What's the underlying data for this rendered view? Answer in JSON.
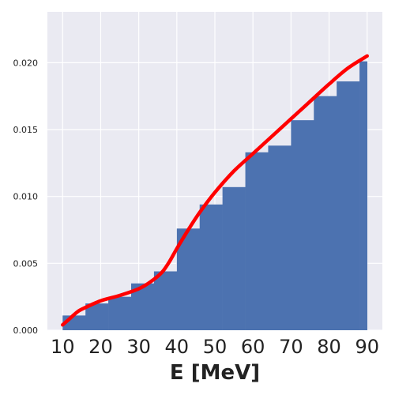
{
  "chart_data": {
    "type": "bar",
    "title": "",
    "xlabel": "E [MeV]",
    "ylabel": "",
    "xlim": [
      6,
      94
    ],
    "ylim": [
      0,
      0.0238
    ],
    "x_ticks": [
      "10",
      "20",
      "30",
      "40",
      "50",
      "60",
      "70",
      "80",
      "90"
    ],
    "y_ticks": [
      "0.000",
      "0.005",
      "0.010",
      "0.015",
      "0.020"
    ],
    "grid": true,
    "bins": [
      {
        "x0": 10,
        "x1": 16,
        "value": 0.0011
      },
      {
        "x0": 16,
        "x1": 22,
        "value": 0.002
      },
      {
        "x0": 22,
        "x1": 28,
        "value": 0.0025
      },
      {
        "x0": 28,
        "x1": 34,
        "value": 0.0035
      },
      {
        "x0": 34,
        "x1": 40,
        "value": 0.0044
      },
      {
        "x0": 40,
        "x1": 46,
        "value": 0.0076
      },
      {
        "x0": 46,
        "x1": 52,
        "value": 0.0094
      },
      {
        "x0": 52,
        "x1": 58,
        "value": 0.0107
      },
      {
        "x0": 58,
        "x1": 64,
        "value": 0.0133
      },
      {
        "x0": 64,
        "x1": 70,
        "value": 0.0138
      },
      {
        "x0": 70,
        "x1": 76,
        "value": 0.0157
      },
      {
        "x0": 76,
        "x1": 82,
        "value": 0.0175
      },
      {
        "x0": 82,
        "x1": 88,
        "value": 0.0186
      },
      {
        "x0": 88,
        "x1": 90,
        "value": 0.0201
      }
    ],
    "curve": {
      "x": [
        10,
        12,
        14,
        16,
        20,
        25,
        30,
        33,
        36,
        38,
        40,
        43,
        46,
        50,
        55,
        60,
        65,
        70,
        75,
        80,
        85,
        90
      ],
      "y": [
        0.0004,
        0.0009,
        0.0014,
        0.0017,
        0.0022,
        0.0026,
        0.0031,
        0.0036,
        0.0043,
        0.0051,
        0.0061,
        0.0075,
        0.0088,
        0.0103,
        0.0119,
        0.0132,
        0.0145,
        0.0158,
        0.0171,
        0.0184,
        0.0196,
        0.0205
      ]
    },
    "colors": {
      "background": "#eaeaf2",
      "grid": "#ffffff",
      "bar": "#4c72b0",
      "curve": "#ff0000"
    }
  }
}
